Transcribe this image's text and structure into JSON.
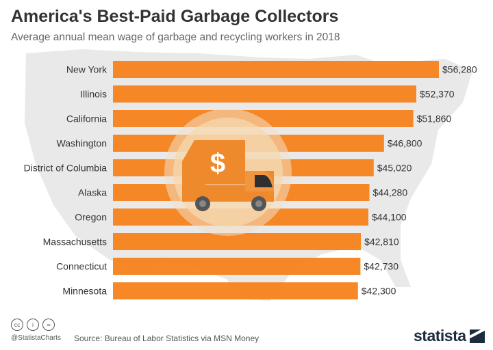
{
  "header": {
    "title": "America's Best-Paid Garbage Collectors",
    "subtitle": "Average annual mean wage of garbage and recycling workers in 2018"
  },
  "chart_data": {
    "type": "bar",
    "orientation": "horizontal",
    "categories": [
      "New York",
      "Illinois",
      "California",
      "Washington",
      "District of Columbia",
      "Alaska",
      "Oregon",
      "Massachusetts",
      "Connecticut",
      "Minnesota"
    ],
    "values": [
      56280,
      52370,
      51860,
      46800,
      45020,
      44280,
      44100,
      42810,
      42730,
      42300
    ],
    "value_labels": [
      "$56,280",
      "$52,370",
      "$51,860",
      "$46,800",
      "$45,020",
      "$44,280",
      "$44,100",
      "$42,810",
      "$42,730",
      "$42,300"
    ],
    "title": "America's Best-Paid Garbage Collectors",
    "subtitle": "Average annual mean wage of garbage and recycling workers in 2018",
    "xlim": [
      0,
      56280
    ],
    "grid": false,
    "bar_color": "#f57f17",
    "background_art": "usa-map"
  },
  "footer": {
    "cc_icons": [
      "cc-icon",
      "by-icon",
      "equal-icon"
    ],
    "cc_glyphs": [
      "cc",
      "i",
      "="
    ],
    "handle": "@StatistaCharts",
    "source": "Source: Bureau of Labor Statistics via MSN Money",
    "brand": "statista"
  },
  "illustration": {
    "icon": "garbage-truck-icon",
    "symbol": "$"
  },
  "colors": {
    "bar": "#f57f17",
    "title": "#333333",
    "map": "#e9e9e9",
    "brand": "#1d2d40"
  }
}
